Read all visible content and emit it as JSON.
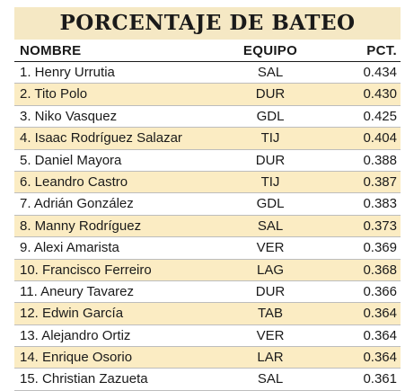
{
  "title": "PORCENTAJE DE BATEO",
  "columns": {
    "name": "NOMBRE",
    "team": "EQUIPO",
    "pct": "PCT."
  },
  "rows": [
    {
      "name": "1. Henry Urrutia",
      "team": "SAL",
      "pct": "0.434",
      "shaded": false
    },
    {
      "name": "2. Tito Polo",
      "team": "DUR",
      "pct": "0.430",
      "shaded": true
    },
    {
      "name": "3. Niko Vasquez",
      "team": "GDL",
      "pct": "0.425",
      "shaded": false
    },
    {
      "name": "4. Isaac Rodríguez Salazar",
      "team": "TIJ",
      "pct": "0.404",
      "shaded": true
    },
    {
      "name": "5. Daniel Mayora",
      "team": "DUR",
      "pct": "0.388",
      "shaded": false
    },
    {
      "name": "6. Leandro Castro",
      "team": "TIJ",
      "pct": "0.387",
      "shaded": true
    },
    {
      "name": "7. Adrián González",
      "team": "GDL",
      "pct": "0.383",
      "shaded": false
    },
    {
      "name": "8. Manny Rodríguez",
      "team": "SAL",
      "pct": "0.373",
      "shaded": true
    },
    {
      "name": "9. Alexi Amarista",
      "team": "VER",
      "pct": "0.369",
      "shaded": false
    },
    {
      "name": "10. Francisco Ferreiro",
      "team": "LAG",
      "pct": "0.368",
      "shaded": true
    },
    {
      "name": "11. Aneury Tavarez",
      "team": "DUR",
      "pct": "0.366",
      "shaded": false
    },
    {
      "name": "12. Edwin García",
      "team": "TAB",
      "pct": "0.364",
      "shaded": true
    },
    {
      "name": "13. Alejandro Ortiz",
      "team": "VER",
      "pct": "0.364",
      "shaded": false
    },
    {
      "name": "14. Enrique Osorio",
      "team": "LAR",
      "pct": "0.364",
      "shaded": true
    },
    {
      "name": "15. Christian Zazueta",
      "team": "SAL",
      "pct": "0.361",
      "shaded": false
    }
  ],
  "colors": {
    "title_bg": "#f5e8c4",
    "row_shade": "#fbecc3",
    "text": "#1a1a1a"
  }
}
